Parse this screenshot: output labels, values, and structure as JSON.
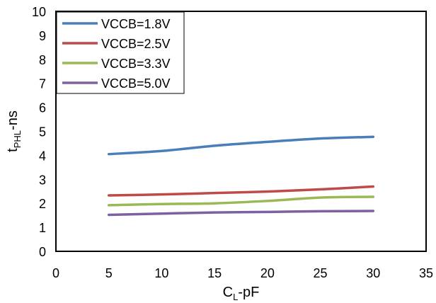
{
  "chart_data": {
    "type": "line",
    "title": "",
    "xlabel": {
      "main": "C",
      "sub": "L",
      "rest": "-pF"
    },
    "ylabel": {
      "main": "t",
      "sub": "PHL",
      "rest": "-ns"
    },
    "xlim": [
      0,
      35
    ],
    "ylim": [
      0,
      10
    ],
    "xticks": [
      0,
      5,
      10,
      15,
      20,
      25,
      30,
      35
    ],
    "yticks": [
      0,
      1,
      2,
      3,
      4,
      5,
      6,
      7,
      8,
      9,
      10
    ],
    "grid": false,
    "legend_position": "top-left",
    "x": [
      5,
      10,
      15,
      20,
      25,
      30
    ],
    "series": [
      {
        "name": "VCCB=1.8V",
        "color": "#4a7ebb",
        "values": [
          4.05,
          4.18,
          4.4,
          4.56,
          4.7,
          4.77
        ]
      },
      {
        "name": "VCCB=2.5V",
        "color": "#be4b48",
        "values": [
          2.33,
          2.37,
          2.43,
          2.49,
          2.58,
          2.7
        ]
      },
      {
        "name": "VCCB=3.3V",
        "color": "#98b954",
        "values": [
          1.92,
          1.97,
          2.0,
          2.1,
          2.24,
          2.27
        ]
      },
      {
        "name": "VCCB=5.0V",
        "color": "#7d60a0",
        "values": [
          1.52,
          1.57,
          1.62,
          1.64,
          1.67,
          1.68
        ]
      }
    ]
  }
}
